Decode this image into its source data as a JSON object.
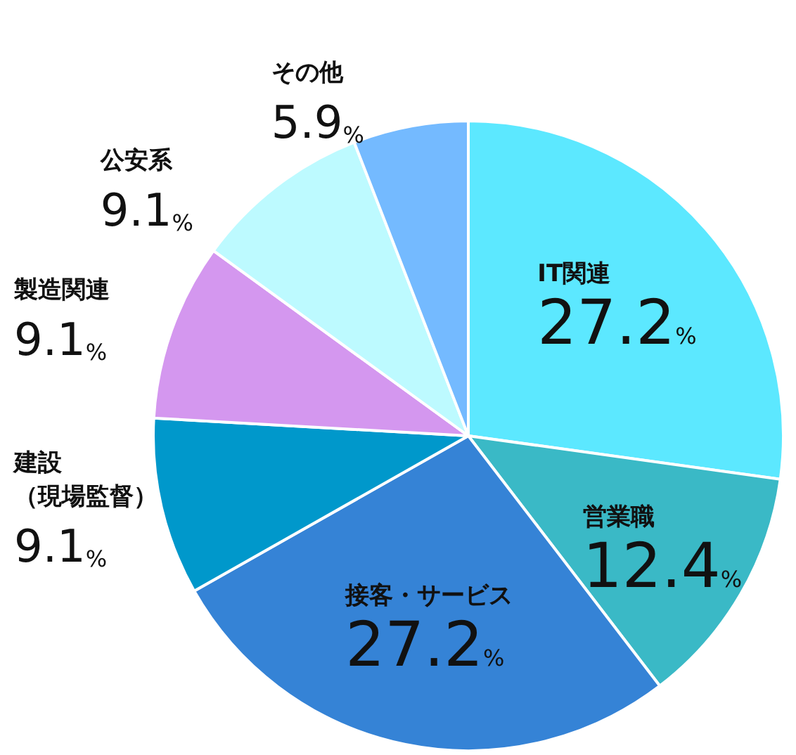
{
  "chart_data": {
    "type": "pie",
    "categories": [
      "IT関連",
      "営業職",
      "接客・サービス",
      "建設（現場監督）",
      "製造関連",
      "公安系",
      "その他"
    ],
    "values": [
      27.2,
      12.4,
      27.2,
      9.1,
      9.1,
      9.1,
      5.9
    ],
    "value_labels": [
      "27.2%",
      "12.4%",
      "27.2%",
      "9.1%",
      "9.1%",
      "9.1%",
      "5.9%"
    ],
    "colors": [
      "#5ce8ff",
      "#3ab9c6",
      "#3583d6",
      "#0098cb",
      "#d497ef",
      "#bdfaff",
      "#74baff"
    ],
    "legend": false
  }
}
